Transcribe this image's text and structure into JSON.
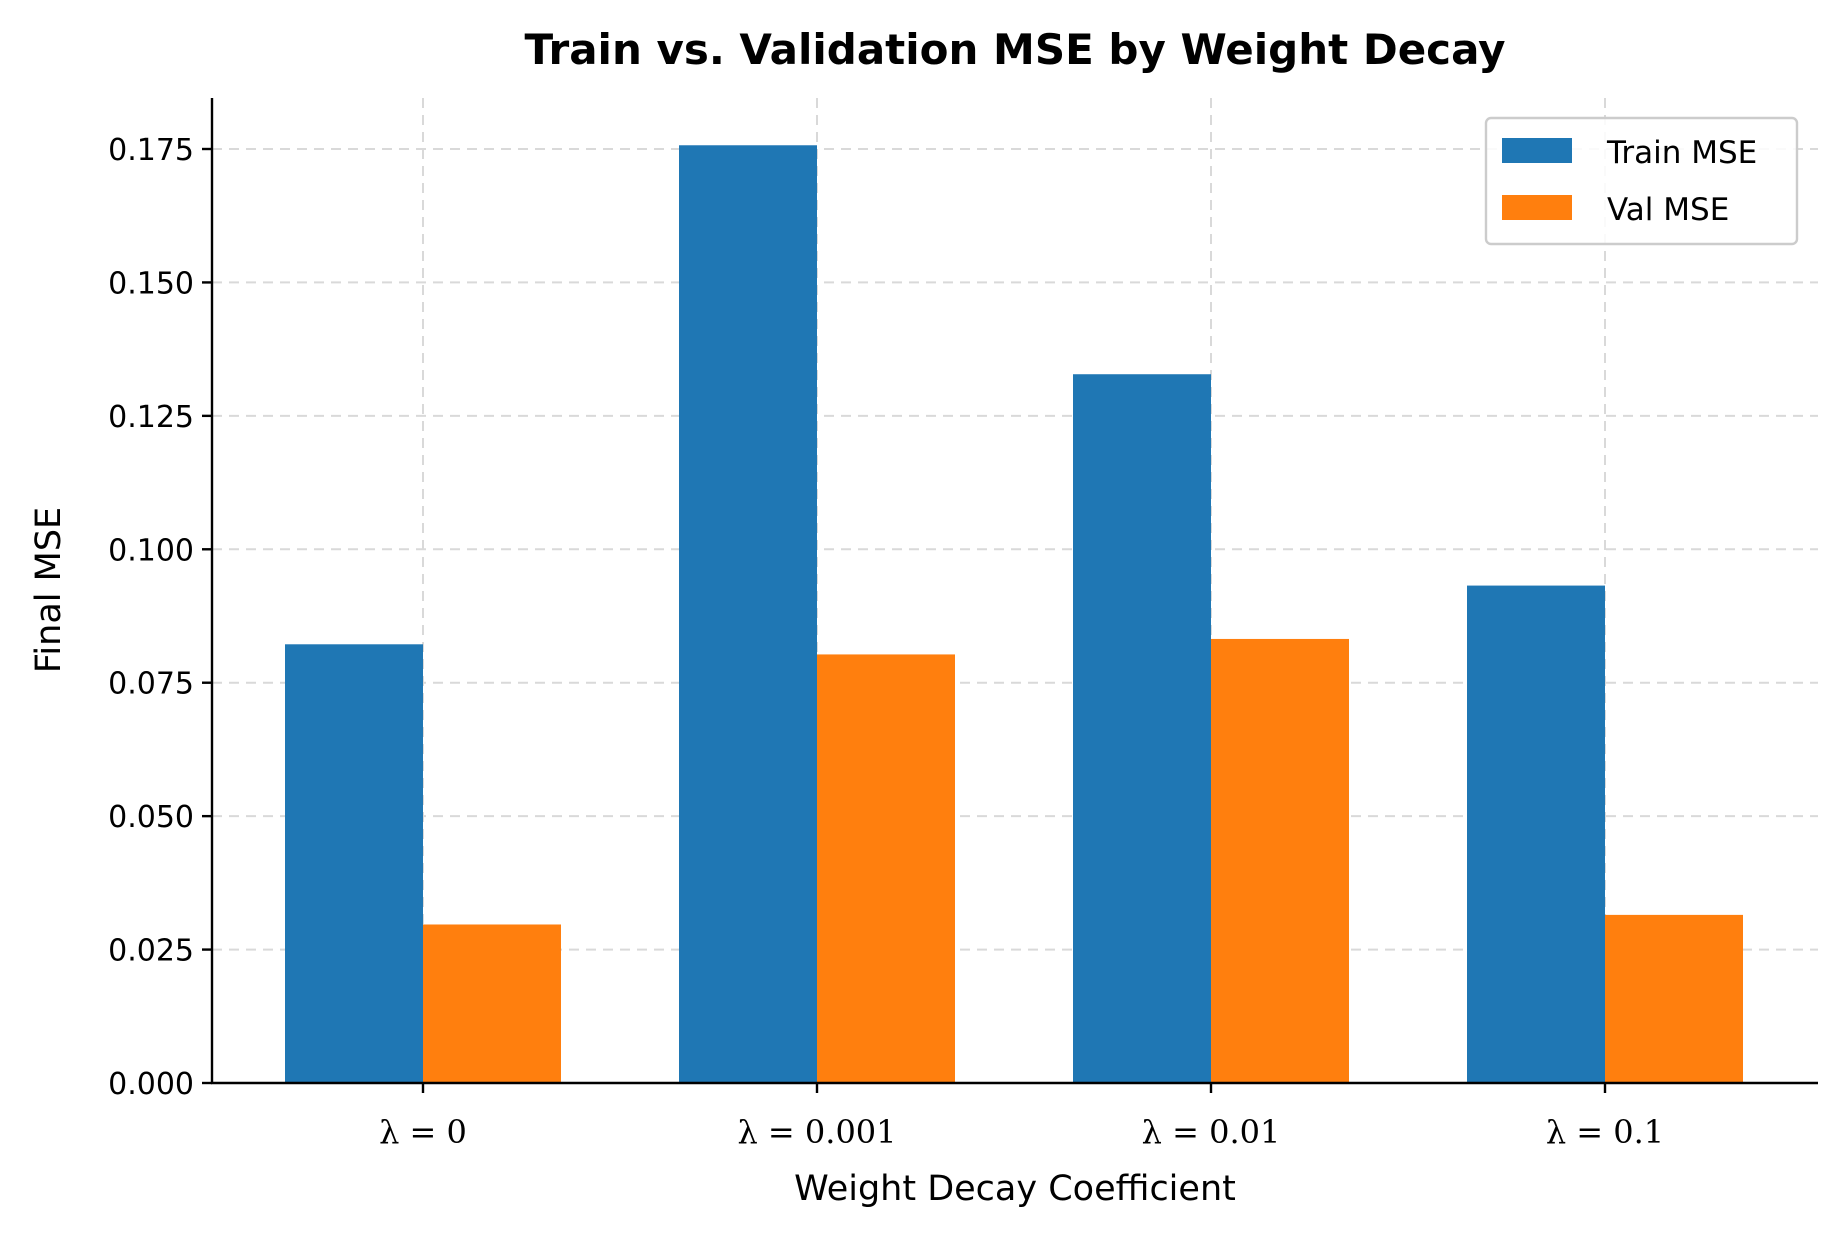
{
  "chart_data": {
    "type": "bar",
    "title": "Train vs. Validation MSE by Weight Decay",
    "xlabel": "Weight Decay Coefficient",
    "ylabel": "Final MSE",
    "categories": [
      "λ = 0",
      "λ = 0.001",
      "λ = 0.01",
      "λ = 0.1"
    ],
    "series": [
      {
        "name": "Train MSE",
        "color": "#1f77b4",
        "values": [
          0.0822,
          0.1757,
          0.1328,
          0.0932
        ]
      },
      {
        "name": "Val MSE",
        "color": "#ff7f0e",
        "values": [
          0.0297,
          0.0803,
          0.0832,
          0.0315
        ]
      }
    ],
    "ylim": [
      0,
      0.185
    ],
    "yticks": [
      0.0,
      0.025,
      0.05,
      0.075,
      0.1,
      0.125,
      0.15,
      0.175
    ],
    "ytick_labels": [
      "0.000",
      "0.025",
      "0.050",
      "0.075",
      "0.100",
      "0.125",
      "0.150",
      "0.175"
    ],
    "grid": true,
    "legend": {
      "position": "top-right",
      "entries": [
        "Train MSE",
        "Val MSE"
      ]
    }
  }
}
